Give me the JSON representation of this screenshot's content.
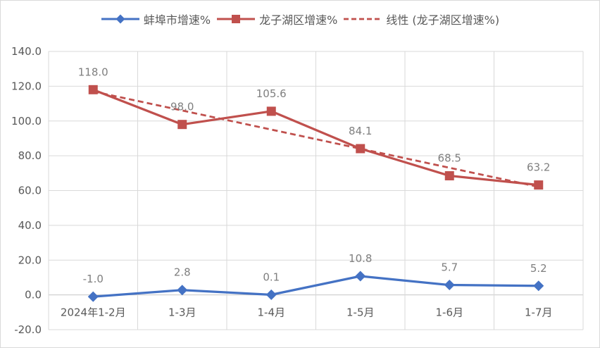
{
  "chart_data": {
    "type": "line",
    "categories": [
      "2024年1-2月",
      "1-3月",
      "1-4月",
      "1-5月",
      "1-6月",
      "1-7月"
    ],
    "series": [
      {
        "name": "蚌埠市增速%",
        "values": [
          -1.0,
          2.8,
          0.1,
          10.8,
          5.7,
          5.2
        ],
        "labels": [
          "-1.0",
          "2.8",
          "0.1",
          "10.8",
          "5.7",
          "5.2"
        ],
        "color": "#4472c4",
        "marker": "diamond",
        "line_style": "solid"
      },
      {
        "name": "龙子湖区增速%",
        "values": [
          118.0,
          98.0,
          105.6,
          84.1,
          68.5,
          63.2
        ],
        "labels": [
          "118.0",
          "98.0",
          "105.6",
          "84.1",
          "68.5",
          "63.2"
        ],
        "color": "#c0504d",
        "marker": "square",
        "line_style": "solid"
      }
    ],
    "trendline": {
      "name": "线性 (龙子湖区增速%)",
      "of_series": "龙子湖区增速%",
      "color": "#c0504d",
      "style": "dashed"
    },
    "title": "",
    "xlabel": "",
    "ylabel": "",
    "ylim": [
      -20,
      140
    ],
    "ytick_step": 20,
    "ytick_labels": [
      "140.0",
      "120.0",
      "100.0",
      "80.0",
      "60.0",
      "40.0",
      "20.0",
      "0.0",
      "-20.0"
    ],
    "grid": true,
    "legend_position": "top",
    "data_labels": true
  },
  "style": {
    "gridline_color": "#d9d9d9",
    "zero_axis_color": "#c6c6c6",
    "axis_label_color": "#595959",
    "data_label_color": "#7f7f7f",
    "background_color": "#ffffff"
  }
}
